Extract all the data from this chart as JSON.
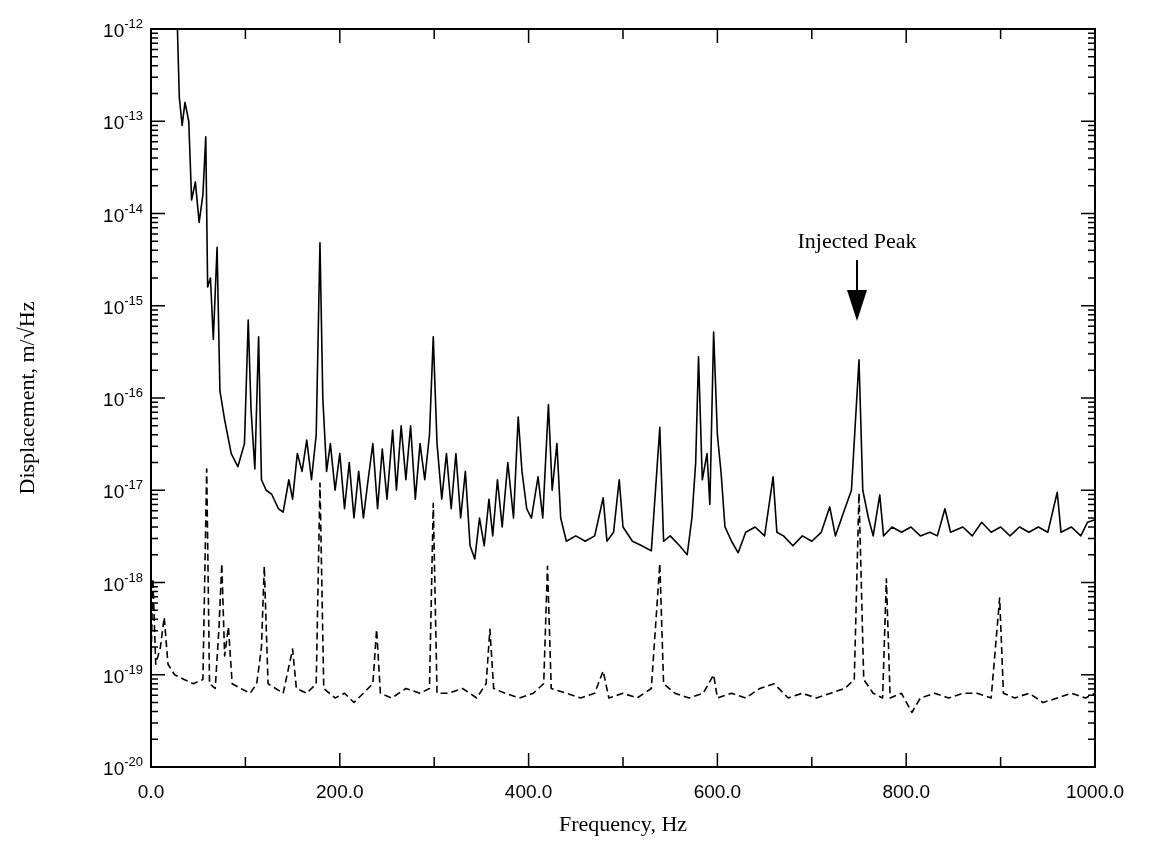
{
  "chart_data": {
    "type": "line",
    "xlabel": "Frequency, Hz",
    "ylabel": "Displacement, m/√Hz",
    "log": "y",
    "xlim": [
      0,
      1000
    ],
    "ylim": [
      1e-20,
      1e-12
    ],
    "xticks": [
      {
        "value": 0,
        "label": "0.0"
      },
      {
        "value": 100,
        "label": null
      },
      {
        "value": 200,
        "label": "200.0"
      },
      {
        "value": 300,
        "label": null
      },
      {
        "value": 400,
        "label": "400.0"
      },
      {
        "value": 500,
        "label": null
      },
      {
        "value": 600,
        "label": "600.0"
      },
      {
        "value": 700,
        "label": null
      },
      {
        "value": 800,
        "label": "800.0"
      },
      {
        "value": 900,
        "label": null
      },
      {
        "value": 1000,
        "label": "1000.0"
      }
    ],
    "yticks": [
      {
        "value": 1e-20,
        "label": "10$^{-20}$"
      },
      {
        "value": 2e-20,
        "label": null
      },
      {
        "value": 3e-20,
        "label": null
      },
      {
        "value": 4e-20,
        "label": null
      },
      {
        "value": 5e-20,
        "label": null
      },
      {
        "value": 6e-20,
        "label": null
      },
      {
        "value": 7e-20,
        "label": null
      },
      {
        "value": 8e-20,
        "label": null
      },
      {
        "value": 9e-20,
        "label": null
      },
      {
        "value": 1e-19,
        "label": "10$^{-19}$"
      },
      {
        "value": 2e-19,
        "label": null
      },
      {
        "value": 3e-19,
        "label": null
      },
      {
        "value": 4e-19,
        "label": null
      },
      {
        "value": 5e-19,
        "label": null
      },
      {
        "value": 6e-19,
        "label": null
      },
      {
        "value": 7e-19,
        "label": null
      },
      {
        "value": 8e-19,
        "label": null
      },
      {
        "value": 9e-19,
        "label": null
      },
      {
        "value": 1e-18,
        "label": "10$^{-18}$"
      },
      {
        "value": 2e-18,
        "label": null
      },
      {
        "value": 3e-18,
        "label": null
      },
      {
        "value": 4e-18,
        "label": null
      },
      {
        "value": 5e-18,
        "label": null
      },
      {
        "value": 6e-18,
        "label": null
      },
      {
        "value": 7e-18,
        "label": null
      },
      {
        "value": 8e-18,
        "label": null
      },
      {
        "value": 9e-18,
        "label": null
      },
      {
        "value": 1e-17,
        "label": "10$^{-17}$"
      },
      {
        "value": 2e-17,
        "label": null
      },
      {
        "value": 3e-17,
        "label": null
      },
      {
        "value": 4e-17,
        "label": null
      },
      {
        "value": 5e-17,
        "label": null
      },
      {
        "value": 6e-17,
        "label": null
      },
      {
        "value": 7e-17,
        "label": null
      },
      {
        "value": 8e-17,
        "label": null
      },
      {
        "value": 9e-17,
        "label": null
      },
      {
        "value": 1e-16,
        "label": "10$^{-16}$"
      },
      {
        "value": 2e-16,
        "label": null
      },
      {
        "value": 3e-16,
        "label": null
      },
      {
        "value": 4e-16,
        "label": null
      },
      {
        "value": 5e-16,
        "label": null
      },
      {
        "value": 6e-16,
        "label": null
      },
      {
        "value": 7e-16,
        "label": null
      },
      {
        "value": 8e-16,
        "label": null
      },
      {
        "value": 9e-16,
        "label": null
      },
      {
        "value": 1e-15,
        "label": "10$^{-15}$"
      },
      {
        "value": 2e-15,
        "label": null
      },
      {
        "value": 3e-15,
        "label": null
      },
      {
        "value": 4e-15,
        "label": null
      },
      {
        "value": 5e-15,
        "label": null
      },
      {
        "value": 6e-15,
        "label": null
      },
      {
        "value": 7e-15,
        "label": null
      },
      {
        "value": 8e-15,
        "label": null
      },
      {
        "value": 9e-15,
        "label": null
      },
      {
        "value": 1e-14,
        "label": "10$^{-14}$"
      },
      {
        "value": 2e-14,
        "label": null
      },
      {
        "value": 3e-14,
        "label": null
      },
      {
        "value": 4e-14,
        "label": null
      },
      {
        "value": 5e-14,
        "label": null
      },
      {
        "value": 6e-14,
        "label": null
      },
      {
        "value": 7e-14,
        "label": null
      },
      {
        "value": 8e-14,
        "label": null
      },
      {
        "value": 9e-14,
        "label": null
      },
      {
        "value": 1e-13,
        "label": "10$^{-13}$"
      },
      {
        "value": 2e-13,
        "label": null
      },
      {
        "value": 3e-13,
        "label": null
      },
      {
        "value": 4e-13,
        "label": null
      },
      {
        "value": 5e-13,
        "label": null
      },
      {
        "value": 6e-13,
        "label": null
      },
      {
        "value": 7e-13,
        "label": null
      },
      {
        "value": 8e-13,
        "label": null
      },
      {
        "value": 9e-13,
        "label": null
      },
      {
        "value": 1e-12,
        "label": "10$^{-12}$"
      }
    ],
    "annotations": [
      "Injected Peak"
    ],
    "series": [
      {
        "color": "#000000",
        "line_style": "solid",
        "x": [
          10,
          28,
          30,
          33,
          36,
          40,
          43,
          47,
          51,
          55,
          58,
          60,
          63,
          66,
          70,
          73,
          78,
          85,
          92,
          99,
          103,
          106,
          110,
          114,
          117,
          122,
          128,
          135,
          140,
          146,
          150,
          155,
          160,
          165,
          170,
          175,
          179,
          182,
          186,
          190,
          195,
          200,
          205,
          210,
          215,
          220,
          225,
          230,
          235,
          240,
          245,
          250,
          256,
          260,
          265,
          270,
          275,
          280,
          285,
          290,
          295,
          299,
          303,
          308,
          313,
          318,
          323,
          328,
          333,
          338,
          343,
          348,
          353,
          358,
          362,
          367,
          372,
          378,
          384,
          389,
          393,
          398,
          403,
          410,
          415,
          421,
          425,
          430,
          434,
          440,
          450,
          460,
          470,
          479,
          483,
          490,
          496,
          500,
          510,
          520,
          530,
          539,
          543,
          550,
          560,
          568,
          573,
          577,
          580,
          584,
          589,
          592,
          596,
          600,
          604,
          608,
          615,
          622,
          630,
          640,
          650,
          659,
          663,
          670,
          680,
          690,
          700,
          710,
          719,
          725,
          735,
          742,
          750,
          754,
          760,
          765,
          772,
          776,
          785,
          795,
          805,
          815,
          825,
          833,
          841,
          847,
          860,
          870,
          880,
          890,
          900,
          910,
          920,
          930,
          940,
          950,
          960,
          964,
          975,
          985,
          992,
          1000
        ],
        "values": [
          1e-12,
          1e-12,
          1.8e-13,
          9e-14,
          1.6e-13,
          1e-13,
          1.4e-14,
          2.2e-14,
          8e-15,
          1.6e-14,
          6.8e-14,
          1.6e-15,
          2e-15,
          4.3e-16,
          4.3e-15,
          1.2e-16,
          5.8e-17,
          2.5e-17,
          1.8e-17,
          3.2e-17,
          7e-16,
          7.4e-17,
          1.7e-17,
          4.6e-16,
          1.3e-17,
          1e-17,
          9e-18,
          6.3e-18,
          5.8e-18,
          1.3e-17,
          8e-18,
          2.5e-17,
          1.6e-17,
          3.5e-17,
          1.3e-17,
          4e-17,
          4.8e-15,
          1e-16,
          1.6e-17,
          3.2e-17,
          1e-17,
          2.5e-17,
          6.3e-18,
          2e-17,
          5e-18,
          1.6e-17,
          5e-18,
          1.3e-17,
          3.2e-17,
          6.3e-18,
          2.8e-17,
          8e-18,
          4.5e-17,
          1e-17,
          5e-17,
          1.3e-17,
          5e-17,
          8e-18,
          3.2e-17,
          1.3e-17,
          4e-17,
          4.6e-16,
          3.2e-17,
          8e-18,
          2.5e-17,
          6.3e-18,
          2.5e-17,
          5e-18,
          1.6e-17,
          2.5e-18,
          1.8e-18,
          5e-18,
          2.5e-18,
          8e-18,
          3.2e-18,
          1.3e-17,
          4e-18,
          2e-17,
          5e-18,
          6.2e-17,
          1.6e-17,
          6.3e-18,
          5e-18,
          1.4e-17,
          5e-18,
          8.5e-17,
          1e-17,
          3.2e-17,
          5e-18,
          2.8e-18,
          3.2e-18,
          2.8e-18,
          3.2e-18,
          8.3e-18,
          2.8e-18,
          3.5e-18,
          1.3e-17,
          4e-18,
          2.8e-18,
          2.5e-18,
          2.2e-18,
          4.8e-17,
          2.8e-18,
          3.2e-18,
          2.5e-18,
          2e-18,
          5e-18,
          2e-17,
          2.8e-16,
          1.3e-17,
          2.5e-17,
          7e-18,
          5.2e-16,
          4e-17,
          1.5e-17,
          4e-18,
          2.8e-18,
          2.1e-18,
          3.5e-18,
          4e-18,
          3.2e-18,
          1.4e-17,
          3.5e-18,
          3.2e-18,
          2.5e-18,
          3.2e-18,
          2.8e-18,
          3.5e-18,
          6.6e-18,
          3.2e-18,
          6.3e-18,
          1e-17,
          2.6e-16,
          1e-17,
          5e-18,
          3.2e-18,
          8.9e-18,
          3.2e-18,
          4e-18,
          3.5e-18,
          4e-18,
          3.2e-18,
          3.5e-18,
          3.2e-18,
          6.3e-18,
          3.5e-18,
          4e-18,
          3.2e-18,
          4.5e-18,
          3.5e-18,
          4e-18,
          3.2e-18,
          4e-18,
          3.5e-18,
          4e-18,
          3.5e-18,
          9.5e-18,
          3.5e-18,
          4e-18,
          3.2e-18,
          4.5e-18,
          4.8e-18
        ]
      },
      {
        "color": "#000000",
        "line_style": "dashed",
        "x": [
          0,
          2,
          5,
          10,
          14,
          18,
          25,
          35,
          45,
          55,
          59,
          62,
          68,
          72,
          75,
          78,
          82,
          86,
          95,
          105,
          112,
          117,
          120,
          124,
          132,
          140,
          150,
          154,
          165,
          175,
          179,
          183,
          195,
          205,
          215,
          225,
          235,
          239,
          243,
          255,
          270,
          285,
          295,
          299,
          303,
          315,
          330,
          345,
          355,
          359,
          363,
          375,
          390,
          405,
          416,
          420,
          424,
          440,
          455,
          470,
          479,
          485,
          500,
          515,
          530,
          539,
          543,
          555,
          570,
          585,
          596,
          600,
          615,
          630,
          645,
          660,
          675,
          690,
          705,
          720,
          735,
          745,
          750,
          755,
          765,
          775,
          779,
          783,
          795,
          806,
          815,
          830,
          845,
          860,
          875,
          890,
          899,
          903,
          915,
          930,
          945,
          960,
          975,
          990,
          1000
        ],
        "values": [
          1.3e-19,
          1.1e-18,
          1.3e-19,
          2e-19,
          4.2e-19,
          1.3e-19,
          1e-19,
          8.9e-20,
          8e-20,
          8.9e-20,
          1.7e-17,
          8e-20,
          7.1e-20,
          3.2e-19,
          1.6e-18,
          1.6e-19,
          3.3e-19,
          8e-20,
          7.1e-20,
          6.3e-20,
          8e-20,
          2e-19,
          1.5e-18,
          8e-20,
          7.1e-20,
          6.3e-20,
          1.9e-19,
          7.1e-20,
          6.3e-20,
          8e-20,
          1.2e-17,
          7.1e-20,
          5.6e-20,
          6.3e-20,
          5e-20,
          6.3e-20,
          8e-20,
          3.1e-19,
          6.3e-20,
          5.6e-20,
          7.1e-20,
          6.3e-20,
          7.1e-20,
          7.2e-18,
          6.3e-20,
          6.3e-20,
          7.1e-20,
          5.6e-20,
          8e-20,
          3.1e-19,
          7.1e-20,
          6.3e-20,
          5.6e-20,
          6.3e-20,
          8e-20,
          1.5e-18,
          7.1e-20,
          6.3e-20,
          5.6e-20,
          6.3e-20,
          1.1e-19,
          5.6e-20,
          6.3e-20,
          5.6e-20,
          7.1e-20,
          1.6e-18,
          8e-20,
          6.3e-20,
          5.6e-20,
          6.3e-20,
          1e-19,
          5.6e-20,
          6.3e-20,
          5.6e-20,
          7.1e-20,
          8e-20,
          5.6e-20,
          6.3e-20,
          5.6e-20,
          6.3e-20,
          7.1e-20,
          8.9e-20,
          9.3e-18,
          8.9e-20,
          6.3e-20,
          5.6e-20,
          1.1e-18,
          5.6e-20,
          6.3e-20,
          3.9e-20,
          5.6e-20,
          6.3e-20,
          5.6e-20,
          6.3e-20,
          6.3e-20,
          5.6e-20,
          6.8e-19,
          6.3e-20,
          5.6e-20,
          6.3e-20,
          5e-20,
          5.6e-20,
          6.3e-20,
          5.6e-20,
          6.3e-20
        ]
      }
    ]
  }
}
